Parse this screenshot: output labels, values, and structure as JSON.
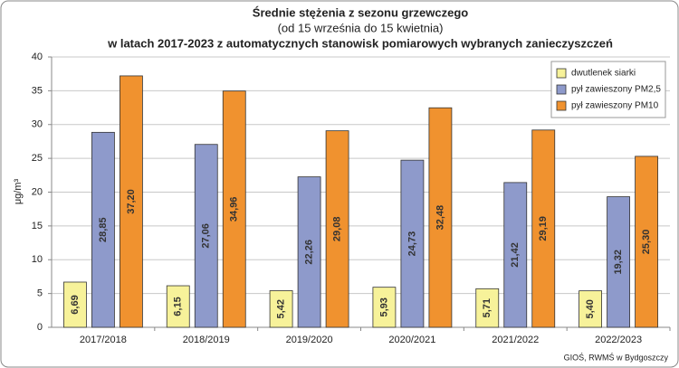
{
  "chart_data": {
    "type": "bar",
    "title_lines": [
      "Średnie stężenia z sezonu grzewczego",
      "(od 15 września do 15 kwietnia)",
      "w latach 2017-2023 z automatycznych stanowisk pomiarowych wybranych zanieczyszczeń"
    ],
    "y_label": "μg/m³",
    "source": "GIOŚ, RWMŚ w Bydgoszczy",
    "categories": [
      "2017/2018",
      "2018/2019",
      "2019/2020",
      "2020/2021",
      "2021/2022",
      "2022/2023"
    ],
    "series": [
      {
        "name": "dwutlenek siarki",
        "color": "#f7f29a",
        "values": [
          6.69,
          6.15,
          5.42,
          5.93,
          5.71,
          5.4
        ],
        "value_labels": [
          "6,69",
          "6,15",
          "5,42",
          "5,93",
          "5,71",
          "5,40"
        ]
      },
      {
        "name": "pył zawieszony PM2,5",
        "color": "#8e9acb",
        "values": [
          28.85,
          27.06,
          22.26,
          24.73,
          21.42,
          19.32
        ],
        "value_labels": [
          "28,85",
          "27,06",
          "22,26",
          "24,73",
          "21,42",
          "19,32"
        ]
      },
      {
        "name": "pył zawieszony PM10",
        "color": "#f0922f",
        "values": [
          37.2,
          34.96,
          29.08,
          32.48,
          29.19,
          25.3
        ],
        "value_labels": [
          "37,20",
          "34,96",
          "29,08",
          "32,48",
          "29,19",
          "25,30"
        ]
      }
    ],
    "ylim": [
      0,
      40
    ],
    "yticks": [
      0,
      5,
      10,
      15,
      20,
      25,
      30,
      35,
      40
    ],
    "grid": true,
    "legend": "upper right"
  }
}
